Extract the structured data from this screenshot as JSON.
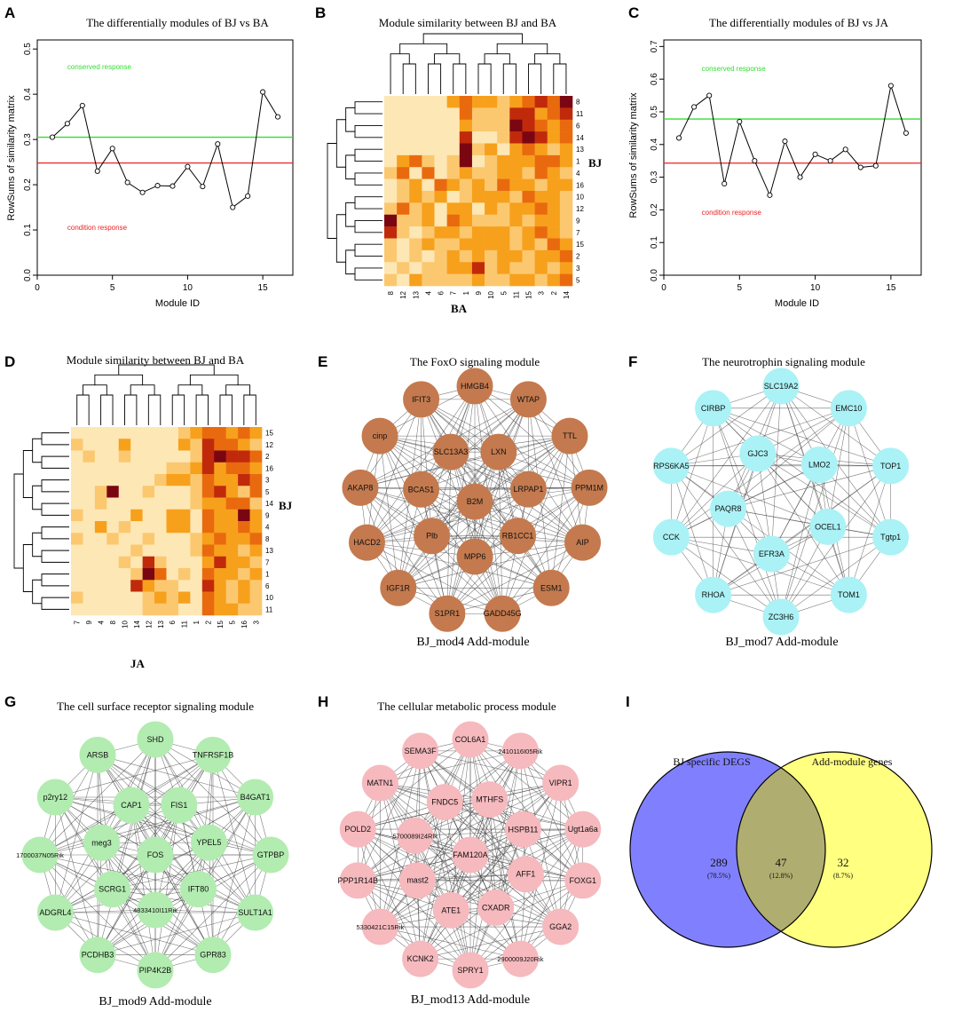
{
  "chart_data": [
    {
      "id": "A",
      "type": "line",
      "panel_label": "A",
      "title": "The differentially modules of BJ vs BA",
      "xlabel": "Module ID",
      "ylabel": "RowSums of similarity matrix",
      "xlim": [
        0,
        17
      ],
      "ylim": [
        0,
        0.52
      ],
      "xticks": [
        0,
        5,
        10,
        15
      ],
      "yticks": [
        0.0,
        0.1,
        0.2,
        0.3,
        0.4,
        0.5
      ],
      "x": [
        1,
        2,
        3,
        4,
        5,
        6,
        7,
        8,
        9,
        10,
        11,
        12,
        13,
        14,
        15,
        16
      ],
      "y": [
        0.305,
        0.335,
        0.375,
        0.23,
        0.28,
        0.205,
        0.183,
        0.198,
        0.197,
        0.24,
        0.196,
        0.29,
        0.15,
        0.175,
        0.405,
        0.35
      ],
      "hlines": [
        {
          "y": 0.305,
          "color": "#33dd33",
          "label": "conserved response",
          "label_x": 2,
          "label_y": 0.455
        },
        {
          "y": 0.248,
          "color": "#ee2222",
          "label": "condition response",
          "label_x": 2,
          "label_y": 0.1
        }
      ]
    },
    {
      "id": "B",
      "type": "heatmap",
      "panel_label": "B",
      "title": "Module similarity between BJ and BA",
      "xlabel": "BA",
      "ylabel": "BJ",
      "x_categories": [
        "8",
        "12",
        "13",
        "4",
        "6",
        "7",
        "1",
        "9",
        "10",
        "5",
        "11",
        "15",
        "3",
        "2",
        "14"
      ],
      "y_categories": [
        "8",
        "11",
        "6",
        "14",
        "13",
        "1",
        "4",
        "16",
        "10",
        "12",
        "9",
        "7",
        "15",
        "2",
        "3",
        "5"
      ],
      "values": [
        [
          1,
          1,
          1,
          1,
          1,
          3,
          4,
          3,
          3,
          2,
          3,
          4,
          5,
          4,
          6
        ],
        [
          1,
          1,
          1,
          1,
          1,
          1,
          4,
          2,
          2,
          2,
          5,
          5,
          3,
          4,
          5
        ],
        [
          1,
          1,
          1,
          1,
          1,
          1,
          3,
          2,
          2,
          2,
          6,
          5,
          4,
          3,
          4
        ],
        [
          1,
          1,
          1,
          1,
          1,
          1,
          5,
          1,
          1,
          2,
          5,
          6,
          5,
          3,
          4
        ],
        [
          1,
          1,
          1,
          1,
          1,
          1,
          6,
          2,
          3,
          1,
          3,
          4,
          3,
          2,
          3
        ],
        [
          1,
          3,
          4,
          2,
          1,
          2,
          6,
          1,
          2,
          3,
          3,
          3,
          4,
          4,
          3
        ],
        [
          2,
          4,
          1,
          4,
          1,
          2,
          3,
          2,
          2,
          3,
          3,
          2,
          4,
          3,
          2
        ],
        [
          1,
          2,
          3,
          1,
          4,
          3,
          2,
          3,
          2,
          4,
          3,
          3,
          2,
          3,
          3
        ],
        [
          1,
          2,
          3,
          2,
          3,
          1,
          2,
          3,
          3,
          3,
          2,
          4,
          3,
          3,
          2
        ],
        [
          2,
          4,
          2,
          3,
          1,
          3,
          3,
          1,
          3,
          2,
          3,
          3,
          4,
          3,
          2
        ],
        [
          6,
          2,
          2,
          3,
          1,
          4,
          3,
          2,
          2,
          2,
          3,
          2,
          3,
          3,
          2
        ],
        [
          5,
          2,
          1,
          2,
          3,
          3,
          2,
          3,
          3,
          3,
          2,
          3,
          4,
          3,
          2
        ],
        [
          2,
          1,
          2,
          3,
          2,
          2,
          3,
          3,
          3,
          3,
          2,
          3,
          2,
          4,
          3
        ],
        [
          2,
          1,
          2,
          1,
          2,
          3,
          2,
          3,
          2,
          3,
          3,
          2,
          3,
          3,
          4
        ],
        [
          1,
          2,
          1,
          2,
          2,
          3,
          3,
          5,
          2,
          3,
          2,
          2,
          3,
          2,
          3
        ],
        [
          2,
          1,
          3,
          2,
          2,
          2,
          2,
          3,
          2,
          2,
          3,
          3,
          2,
          3,
          4
        ]
      ]
    },
    {
      "id": "C",
      "type": "line",
      "panel_label": "C",
      "title": "The differentially modules of BJ vs JA",
      "xlabel": "Module ID",
      "ylabel": "RowSums of similarity matrix",
      "xlim": [
        0,
        17
      ],
      "ylim": [
        0,
        0.72
      ],
      "xticks": [
        0,
        5,
        10,
        15
      ],
      "yticks": [
        0.0,
        0.1,
        0.2,
        0.3,
        0.4,
        0.5,
        0.6,
        0.7
      ],
      "x": [
        1,
        2,
        3,
        4,
        5,
        6,
        7,
        8,
        9,
        10,
        11,
        12,
        13,
        14,
        15,
        16
      ],
      "y": [
        0.42,
        0.515,
        0.55,
        0.28,
        0.47,
        0.35,
        0.245,
        0.41,
        0.3,
        0.37,
        0.35,
        0.385,
        0.33,
        0.335,
        0.58,
        0.435
      ],
      "hlines": [
        {
          "y": 0.478,
          "color": "#33dd33",
          "label": "conserved response",
          "label_x": 2.5,
          "label_y": 0.625
        },
        {
          "y": 0.343,
          "color": "#ee2222",
          "label": "condition response",
          "label_x": 2.5,
          "label_y": 0.185
        }
      ]
    },
    {
      "id": "D",
      "type": "heatmap",
      "panel_label": "D",
      "title": "Module similarity between BJ and BA",
      "xlabel": "JA",
      "ylabel": "BJ",
      "x_categories": [
        "7",
        "9",
        "4",
        "8",
        "10",
        "14",
        "12",
        "13",
        "6",
        "11",
        "1",
        "2",
        "15",
        "5",
        "16",
        "3"
      ],
      "y_categories": [
        "15",
        "12",
        "2",
        "16",
        "3",
        "5",
        "14",
        "9",
        "4",
        "8",
        "13",
        "7",
        "1",
        "6",
        "10",
        "11"
      ],
      "values": [
        [
          1,
          1,
          1,
          1,
          1,
          1,
          1,
          1,
          1,
          2,
          3,
          4,
          4,
          3,
          4,
          3
        ],
        [
          2,
          1,
          1,
          1,
          3,
          1,
          1,
          1,
          1,
          3,
          2,
          5,
          4,
          4,
          3,
          2
        ],
        [
          1,
          2,
          1,
          1,
          2,
          1,
          1,
          1,
          1,
          1,
          2,
          5,
          6,
          5,
          5,
          4
        ],
        [
          1,
          1,
          1,
          1,
          1,
          1,
          1,
          1,
          2,
          2,
          3,
          5,
          3,
          4,
          4,
          3
        ],
        [
          1,
          1,
          1,
          1,
          1,
          1,
          1,
          2,
          3,
          3,
          2,
          4,
          3,
          3,
          5,
          4
        ],
        [
          1,
          1,
          2,
          6,
          1,
          1,
          2,
          1,
          1,
          1,
          2,
          4,
          5,
          3,
          2,
          4
        ],
        [
          1,
          1,
          2,
          1,
          1,
          1,
          1,
          1,
          1,
          1,
          2,
          3,
          3,
          4,
          4,
          2
        ],
        [
          2,
          1,
          1,
          1,
          1,
          3,
          1,
          1,
          3,
          3,
          1,
          4,
          3,
          3,
          6,
          3
        ],
        [
          1,
          1,
          3,
          1,
          2,
          1,
          1,
          1,
          3,
          3,
          1,
          4,
          3,
          3,
          4,
          3
        ],
        [
          2,
          1,
          1,
          2,
          1,
          1,
          2,
          1,
          1,
          1,
          2,
          3,
          4,
          3,
          3,
          4
        ],
        [
          1,
          1,
          1,
          1,
          1,
          2,
          1,
          1,
          1,
          1,
          2,
          4,
          3,
          3,
          2,
          3
        ],
        [
          1,
          1,
          1,
          1,
          2,
          1,
          5,
          2,
          1,
          1,
          1,
          3,
          5,
          3,
          3,
          2
        ],
        [
          1,
          1,
          1,
          1,
          1,
          2,
          6,
          4,
          1,
          2,
          1,
          4,
          3,
          3,
          2,
          3
        ],
        [
          1,
          1,
          1,
          1,
          1,
          5,
          3,
          2,
          2,
          1,
          1,
          5,
          3,
          2,
          3,
          2
        ],
        [
          2,
          1,
          1,
          1,
          1,
          1,
          2,
          3,
          2,
          3,
          1,
          4,
          3,
          2,
          3,
          2
        ],
        [
          1,
          1,
          1,
          1,
          1,
          1,
          2,
          2,
          2,
          1,
          1,
          4,
          3,
          3,
          2,
          2
        ]
      ]
    }
  ],
  "networks": [
    {
      "id": "E",
      "panel_label": "E",
      "title": "The FoxO signaling module",
      "caption": "BJ_mod4 Add-module",
      "color": "#c47a4e",
      "outer": [
        "HMGB4",
        "WTAP",
        "TTL",
        "PPM1M",
        "AIP",
        "ESM1",
        "GADD45G",
        "S1PR1",
        "IGF1R",
        "HACD2",
        "AKAP8",
        "cinp",
        "IFIT3"
      ],
      "inner": [
        "SLC13A3",
        "LXN",
        "LRPAP1",
        "RB1CC1",
        "MPP6",
        "Plb",
        "BCAS1"
      ],
      "center": "B2M"
    },
    {
      "id": "F",
      "panel_label": "F",
      "title": "The neurotrophin signaling module",
      "caption": "BJ_mod7 Add-module",
      "color": "#aaf2f6",
      "outer": [
        "SLC19A2",
        "EMC10",
        "TOP1",
        "Tgtp1",
        "TOM1",
        "ZC3H6",
        "RHOA",
        "CCK",
        "RPS6KA5",
        "CIRBP"
      ],
      "inner": [
        "GJC3",
        "LMO2",
        "OCEL1",
        "EFR3A",
        "PAQR8"
      ],
      "center": ""
    },
    {
      "id": "G",
      "panel_label": "G",
      "title": "The cell surface receptor signaling module",
      "caption": "BJ_mod9 Add-module",
      "color": "#b2ecb0",
      "outer": [
        "SHD",
        "TNFRSF1B",
        "B4GAT1",
        "GTPBP",
        "SULT1A1",
        "GPR83",
        "PIP4K2B",
        "PCDHB3",
        "ADGRL4",
        "1700037N05Rik",
        "p2ry12",
        "ARSB"
      ],
      "inner": [
        "CAP1",
        "FIS1",
        "YPEL5",
        "IFT80",
        "4833410I11Rik",
        "SCRG1",
        "meg3"
      ],
      "center": "FOS"
    },
    {
      "id": "H",
      "panel_label": "H",
      "title": "The cellular metabolic process module",
      "caption": "BJ_mod13 Add-module",
      "color": "#f6b9bd",
      "outer": [
        "COL6A1",
        "2410116I05Rik",
        "VIPR1",
        "Ugt1a6a",
        "FOXG1",
        "GGA2",
        "2900009J20Rik",
        "SPRY1",
        "KCNK2",
        "5330421C15Rik",
        "PPP1R14B",
        "POLD2",
        "MATN1",
        "SEMA3F"
      ],
      "inner": [
        "FNDC5",
        "MTHFS",
        "HSPB11",
        "AFF1",
        "CXADR",
        "ATE1",
        "mast2",
        "5700089I24Rik"
      ],
      "center": "FAM120A"
    }
  ],
  "venn": {
    "panel_label": "I",
    "left_label": "BJ specific DEGS",
    "left_color": "#2222dd",
    "right_label": "Add-module genes",
    "right_color": "#888800",
    "left_only": "289",
    "left_only_pct": "(78.5%)",
    "overlap": "47",
    "overlap_pct": "(12.8%)",
    "right_only": "32",
    "right_only_pct": "(8.7%)",
    "left_fill": "#8080ff",
    "right_fill": "#ffff80",
    "overlap_fill": "#b0ad70"
  }
}
